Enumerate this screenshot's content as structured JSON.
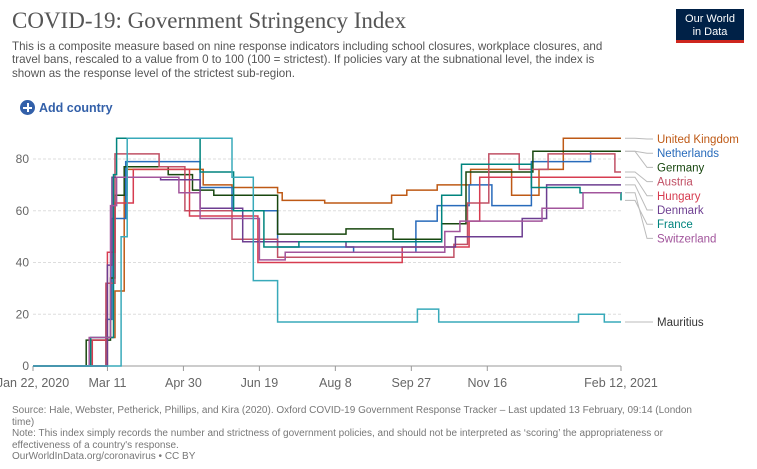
{
  "header": {
    "title": "COVID-19: Government Stringency Index",
    "subtitle": "This is a composite measure based on nine response indicators including school closures, workplace closures, and travel bans, rescaled to a value from 0 to 100 (100 = strictest). If policies vary at the subnational level, the index is shown as the response level of the strictest sub-region.",
    "logo": [
      "Our World",
      "in Data"
    ],
    "add_country_label": "Add country"
  },
  "footer": {
    "source": "Source: Hale, Webster, Petherick, Phillips, and Kira (2020). Oxford COVID-19 Government Response Tracker – Last updated 13 February, 09:14 (London time)",
    "note": "Note: This index simply records the number and strictness of government policies, and should not be interpreted as ‘scoring’ the appropriateness or effectiveness of a country's response.",
    "url": "OurWorldInData.org/coronavirus • CC BY"
  },
  "chart_data": {
    "type": "line",
    "title": "COVID-19: Government Stringency Index",
    "x_tick_labels": [
      "Jan 22, 2020",
      "Mar 11",
      "Apr 30",
      "Jun 19",
      "Aug 8",
      "Sep 27",
      "Nov 16",
      "Feb 12, 2021"
    ],
    "x_tick_dates": [
      "2020-01-22",
      "2020-03-11",
      "2020-04-30",
      "2020-06-19",
      "2020-08-08",
      "2020-09-27",
      "2020-11-16",
      "2021-02-12"
    ],
    "xlim": [
      "2020-01-22",
      "2021-02-12"
    ],
    "ylim": [
      0,
      92
    ],
    "y_ticks": [
      0,
      20,
      40,
      60,
      80
    ],
    "grid": "horizontal dashed",
    "legend": "right, labels at line ends",
    "series": [
      {
        "name": "United Kingdom",
        "color": "#be5915",
        "points": [
          [
            "2020-01-22",
            0
          ],
          [
            "2020-03-01",
            0
          ],
          [
            "2020-03-11",
            11
          ],
          [
            "2020-03-16",
            29
          ],
          [
            "2020-03-22",
            66
          ],
          [
            "2020-03-24",
            76
          ],
          [
            "2020-05-13",
            70
          ],
          [
            "2020-06-01",
            69
          ],
          [
            "2020-07-01",
            67
          ],
          [
            "2020-07-04",
            64
          ],
          [
            "2020-08-01",
            63
          ],
          [
            "2020-09-14",
            66
          ],
          [
            "2020-09-24",
            68
          ],
          [
            "2020-10-14",
            70
          ],
          [
            "2020-11-05",
            76
          ],
          [
            "2020-12-02",
            66
          ],
          [
            "2020-12-20",
            76
          ],
          [
            "2021-01-05",
            88
          ],
          [
            "2021-02-12",
            88
          ]
        ]
      },
      {
        "name": "Netherlands",
        "color": "#286bbb",
        "points": [
          [
            "2020-01-22",
            0
          ],
          [
            "2020-02-27",
            0
          ],
          [
            "2020-03-10",
            18
          ],
          [
            "2020-03-14",
            57
          ],
          [
            "2020-03-23",
            79
          ],
          [
            "2020-05-11",
            69
          ],
          [
            "2020-06-01",
            60
          ],
          [
            "2020-07-01",
            46
          ],
          [
            "2020-08-06",
            46
          ],
          [
            "2020-08-20",
            44
          ],
          [
            "2020-09-30",
            56
          ],
          [
            "2020-10-14",
            62
          ],
          [
            "2020-11-04",
            70
          ],
          [
            "2020-11-19",
            62
          ],
          [
            "2020-12-15",
            79
          ],
          [
            "2021-01-23",
            83
          ],
          [
            "2021-02-12",
            83
          ]
        ]
      },
      {
        "name": "Germany",
        "color": "#18470f",
        "points": [
          [
            "2020-01-22",
            0
          ],
          [
            "2020-02-26",
            10
          ],
          [
            "2020-03-13",
            34
          ],
          [
            "2020-03-16",
            66
          ],
          [
            "2020-03-22",
            77
          ],
          [
            "2020-04-20",
            74
          ],
          [
            "2020-05-06",
            68
          ],
          [
            "2020-05-20",
            66
          ],
          [
            "2020-07-01",
            51
          ],
          [
            "2020-08-15",
            53
          ],
          [
            "2020-09-15",
            49
          ],
          [
            "2020-10-17",
            55
          ],
          [
            "2020-11-02",
            75
          ],
          [
            "2020-12-16",
            83
          ],
          [
            "2021-02-12",
            83
          ]
        ]
      },
      {
        "name": "Austria",
        "color": "#c15065",
        "points": [
          [
            "2020-01-22",
            0
          ],
          [
            "2020-03-10",
            32
          ],
          [
            "2020-03-16",
            82
          ],
          [
            "2020-04-14",
            77
          ],
          [
            "2020-05-01",
            60
          ],
          [
            "2020-06-01",
            49
          ],
          [
            "2020-07-01",
            42
          ],
          [
            "2020-09-14",
            42
          ],
          [
            "2020-10-25",
            47
          ],
          [
            "2020-11-03",
            63
          ],
          [
            "2020-11-17",
            82
          ],
          [
            "2020-12-07",
            76
          ],
          [
            "2020-12-26",
            82
          ],
          [
            "2021-02-08",
            75
          ],
          [
            "2021-02-12",
            75
          ]
        ]
      },
      {
        "name": "Hungary",
        "color": "#d73c50",
        "points": [
          [
            "2020-01-22",
            0
          ],
          [
            "2020-03-01",
            10
          ],
          [
            "2020-03-11",
            44
          ],
          [
            "2020-03-16",
            63
          ],
          [
            "2020-03-28",
            76
          ],
          [
            "2020-05-04",
            58
          ],
          [
            "2020-06-18",
            40
          ],
          [
            "2020-09-01",
            40
          ],
          [
            "2020-09-21",
            46
          ],
          [
            "2020-11-04",
            56
          ],
          [
            "2020-11-11",
            73
          ],
          [
            "2021-02-12",
            73
          ]
        ]
      },
      {
        "name": "Denmark",
        "color": "#6d3e91",
        "points": [
          [
            "2020-01-22",
            0
          ],
          [
            "2020-03-11",
            39
          ],
          [
            "2020-03-14",
            73
          ],
          [
            "2020-04-15",
            72
          ],
          [
            "2020-05-11",
            61
          ],
          [
            "2020-06-08",
            48
          ],
          [
            "2020-08-15",
            46
          ],
          [
            "2020-10-26",
            50
          ],
          [
            "2020-12-09",
            57
          ],
          [
            "2020-12-25",
            70
          ],
          [
            "2021-02-12",
            70
          ]
        ]
      },
      {
        "name": "France",
        "color": "#00847e",
        "points": [
          [
            "2020-01-22",
            0
          ],
          [
            "2020-02-29",
            11
          ],
          [
            "2020-03-15",
            74
          ],
          [
            "2020-03-17",
            88
          ],
          [
            "2020-05-11",
            75
          ],
          [
            "2020-06-02",
            60
          ],
          [
            "2020-06-22",
            46
          ],
          [
            "2020-07-15",
            48
          ],
          [
            "2020-10-17",
            66
          ],
          [
            "2020-10-30",
            78
          ],
          [
            "2020-12-15",
            69
          ],
          [
            "2021-01-16",
            67
          ],
          [
            "2021-02-12",
            64
          ]
        ]
      },
      {
        "name": "Switzerland",
        "color": "#a2559c",
        "points": [
          [
            "2020-01-22",
            0
          ],
          [
            "2020-02-28",
            11
          ],
          [
            "2020-03-13",
            62
          ],
          [
            "2020-03-17",
            73
          ],
          [
            "2020-04-27",
            67
          ],
          [
            "2020-05-11",
            57
          ],
          [
            "2020-06-19",
            41
          ],
          [
            "2020-07-06",
            44
          ],
          [
            "2020-10-19",
            52
          ],
          [
            "2020-10-29",
            56
          ],
          [
            "2020-12-22",
            61
          ],
          [
            "2021-01-18",
            67
          ],
          [
            "2021-02-12",
            67
          ]
        ]
      },
      {
        "name": "Mauritius",
        "color": "#38aaba",
        "points": [
          [
            "2020-01-22",
            0
          ],
          [
            "2020-03-18",
            0
          ],
          [
            "2020-03-20",
            50
          ],
          [
            "2020-03-24",
            88
          ],
          [
            "2020-06-01",
            73
          ],
          [
            "2020-06-15",
            33
          ],
          [
            "2020-07-01",
            17
          ],
          [
            "2020-10-01",
            22
          ],
          [
            "2020-10-15",
            17
          ],
          [
            "2021-01-01",
            17
          ],
          [
            "2021-01-15",
            20
          ],
          [
            "2021-02-01",
            17
          ],
          [
            "2021-02-12",
            17
          ]
        ]
      }
    ]
  }
}
